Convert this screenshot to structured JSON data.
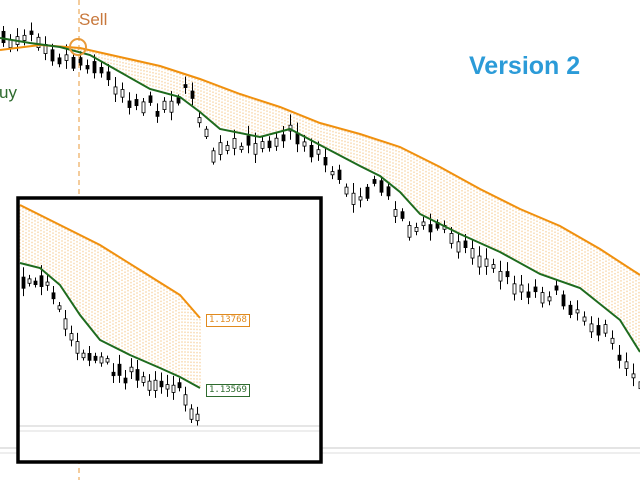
{
  "chart": {
    "signals": {
      "sell": "Sell",
      "buy": "uy"
    },
    "version_label": "Version 2",
    "inset": {
      "upper_price": "1.13768",
      "lower_price": "1.13569"
    },
    "colors": {
      "upper_band": "#f0900e",
      "lower_line": "#1e6b1e",
      "hatch": "#f2b86a",
      "candle": "#000000",
      "sell_marker": "#e89a3a",
      "version_label": "#2b9bd8"
    }
  }
}
